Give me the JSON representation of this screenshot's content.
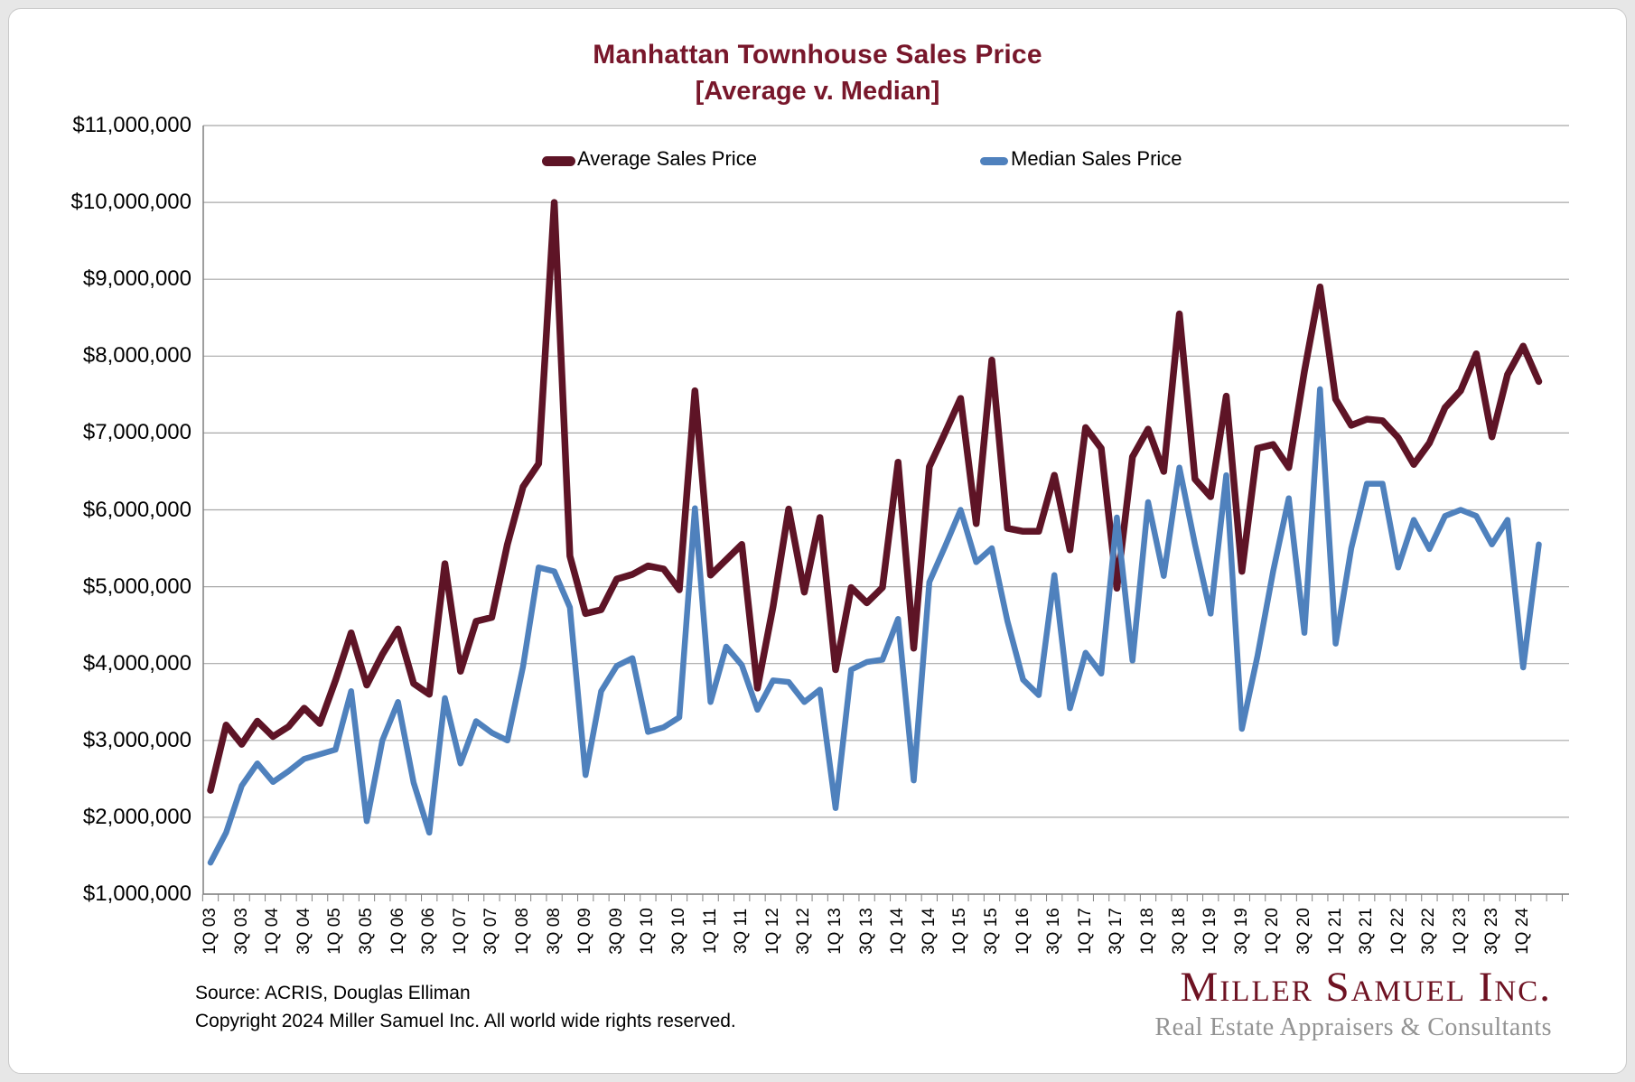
{
  "page": {
    "title_line1": "Manhattan Townhouse Sales Price",
    "title_line2": "[Average v. Median]"
  },
  "legend": {
    "average_label": "Average Sales Price",
    "median_label": "Median Sales Price"
  },
  "footer": {
    "source": "Source: ACRIS, Douglas Elliman",
    "copyright": "Copyright 2024 Miller Samuel Inc.  All world wide rights reserved."
  },
  "branding": {
    "name": "Miller Samuel Inc.",
    "tagline": "Real Estate Appraisers & Consultants"
  },
  "colors": {
    "average_line": "#5E1426",
    "median_line": "#4F81BD",
    "title": "#78172B",
    "gridline": "#A8A8A8",
    "axis": "#7F7F7F"
  },
  "chart_data": {
    "type": "line",
    "title": "Manhattan Townhouse Sales Price [Average v. Median]",
    "xlabel": "",
    "ylabel": "",
    "ylim": [
      1000000,
      11000000
    ],
    "y_tick_step": 1000000,
    "y_tick_labels": [
      "$1,000,000",
      "$2,000,000",
      "$3,000,000",
      "$4,000,000",
      "$5,000,000",
      "$6,000,000",
      "$7,000,000",
      "$8,000,000",
      "$9,000,000",
      "$10,000,000",
      "$11,000,000"
    ],
    "grid": "horizontal",
    "legend_position": "top-inside",
    "categories": [
      "1Q 03",
      "2Q 03",
      "3Q 03",
      "4Q 03",
      "1Q 04",
      "2Q 04",
      "3Q 04",
      "4Q 04",
      "1Q 05",
      "2Q 05",
      "3Q 05",
      "4Q 05",
      "1Q 06",
      "2Q 06",
      "3Q 06",
      "4Q 06",
      "1Q 07",
      "2Q 07",
      "3Q 07",
      "4Q 07",
      "1Q 08",
      "2Q 08",
      "3Q 08",
      "4Q 08",
      "1Q 09",
      "2Q 09",
      "3Q 09",
      "4Q 09",
      "1Q 10",
      "2Q 10",
      "3Q 10",
      "4Q 10",
      "1Q 11",
      "2Q 11",
      "3Q 11",
      "4Q 11",
      "1Q 12",
      "2Q 12",
      "3Q 12",
      "4Q 12",
      "1Q 13",
      "2Q 13",
      "3Q 13",
      "4Q 13",
      "1Q 14",
      "2Q 14",
      "3Q 14",
      "4Q 14",
      "1Q 15",
      "2Q 15",
      "3Q 15",
      "4Q 15",
      "1Q 16",
      "2Q 16",
      "3Q 16",
      "4Q 16",
      "1Q 17",
      "2Q 17",
      "3Q 17",
      "4Q 17",
      "1Q 18",
      "2Q 18",
      "3Q 18",
      "4Q 18",
      "1Q 19",
      "2Q 19",
      "3Q 19",
      "4Q 19",
      "1Q 20",
      "2Q 20",
      "3Q 20",
      "4Q 20",
      "1Q 21",
      "2Q 21",
      "3Q 21",
      "4Q 21",
      "1Q 22",
      "2Q 22",
      "3Q 22",
      "4Q 22",
      "1Q 23",
      "2Q 23",
      "3Q 23",
      "4Q 23",
      "1Q 24",
      "2Q 24"
    ],
    "x_tick_labels": [
      "1Q 03",
      "3Q 03",
      "1Q 04",
      "3Q 04",
      "1Q 05",
      "3Q 05",
      "1Q 06",
      "3Q 06",
      "1Q 07",
      "3Q 07",
      "1Q 08",
      "3Q 08",
      "1Q 09",
      "3Q 09",
      "1Q 10",
      "3Q 10",
      "1Q 11",
      "3Q 11",
      "1Q 12",
      "3Q 12",
      "1Q 13",
      "3Q 13",
      "1Q 14",
      "3Q 14",
      "1Q 15",
      "3Q 15",
      "1Q 16",
      "3Q 16",
      "1Q 17",
      "3Q 17",
      "1Q 18",
      "3Q 18",
      "1Q 19",
      "3Q 19",
      "1Q 20",
      "3Q 20",
      "1Q 21",
      "3Q 21",
      "1Q 22",
      "3Q 22",
      "1Q 23",
      "3Q 23",
      "1Q 24"
    ],
    "x_label_every": 2,
    "series": [
      {
        "name": "Average Sales Price",
        "color": "#5E1426",
        "values": [
          2350000,
          3200000,
          2950000,
          3250000,
          3050000,
          3180000,
          3420000,
          3220000,
          3780000,
          4400000,
          3720000,
          4120000,
          4450000,
          3740000,
          3600000,
          5300000,
          3900000,
          4550000,
          4600000,
          5550000,
          6300000,
          6600000,
          10000000,
          5400000,
          4650000,
          4700000,
          5100000,
          5160000,
          5270000,
          5230000,
          4960000,
          7550000,
          5150000,
          5350000,
          5550000,
          3680000,
          4740000,
          6010000,
          4930000,
          5900000,
          3920000,
          4990000,
          4790000,
          4990000,
          6620000,
          4200000,
          6560000,
          7000000,
          7450000,
          5820000,
          7950000,
          5760000,
          5720000,
          5720000,
          6450000,
          5480000,
          7070000,
          6800000,
          4980000,
          6690000,
          7050000,
          6500000,
          8550000,
          6400000,
          6170000,
          7480000,
          5200000,
          6800000,
          6850000,
          6550000,
          7800000,
          8900000,
          7440000,
          7100000,
          7180000,
          7160000,
          6940000,
          6590000,
          6870000,
          7330000,
          7550000,
          8030000,
          6950000,
          7760000,
          8130000,
          7670000
        ]
      },
      {
        "name": "Median Sales Price",
        "color": "#4F81BD",
        "values": [
          1410000,
          1800000,
          2410000,
          2700000,
          2460000,
          2600000,
          2760000,
          2820000,
          2880000,
          3640000,
          1950000,
          3000000,
          3500000,
          2450000,
          1800000,
          3550000,
          2700000,
          3250000,
          3100000,
          3000000,
          3960000,
          5250000,
          5200000,
          4730000,
          2550000,
          3640000,
          3970000,
          4070000,
          3110000,
          3170000,
          3300000,
          6020000,
          3500000,
          4220000,
          3980000,
          3400000,
          3780000,
          3760000,
          3500000,
          3660000,
          2120000,
          3920000,
          4020000,
          4050000,
          4580000,
          2480000,
          5060000,
          5520000,
          6000000,
          5320000,
          5500000,
          4550000,
          3790000,
          3590000,
          5150000,
          3420000,
          4140000,
          3870000,
          5900000,
          4040000,
          6100000,
          5140000,
          6550000,
          5550000,
          4650000,
          6450000,
          3150000,
          4100000,
          5200000,
          6150000,
          4400000,
          7570000,
          4260000,
          5500000,
          6340000,
          6340000,
          5250000,
          5870000,
          5490000,
          5920000,
          6000000,
          5920000,
          5550000,
          5870000,
          3950000,
          5550000
        ]
      }
    ]
  }
}
